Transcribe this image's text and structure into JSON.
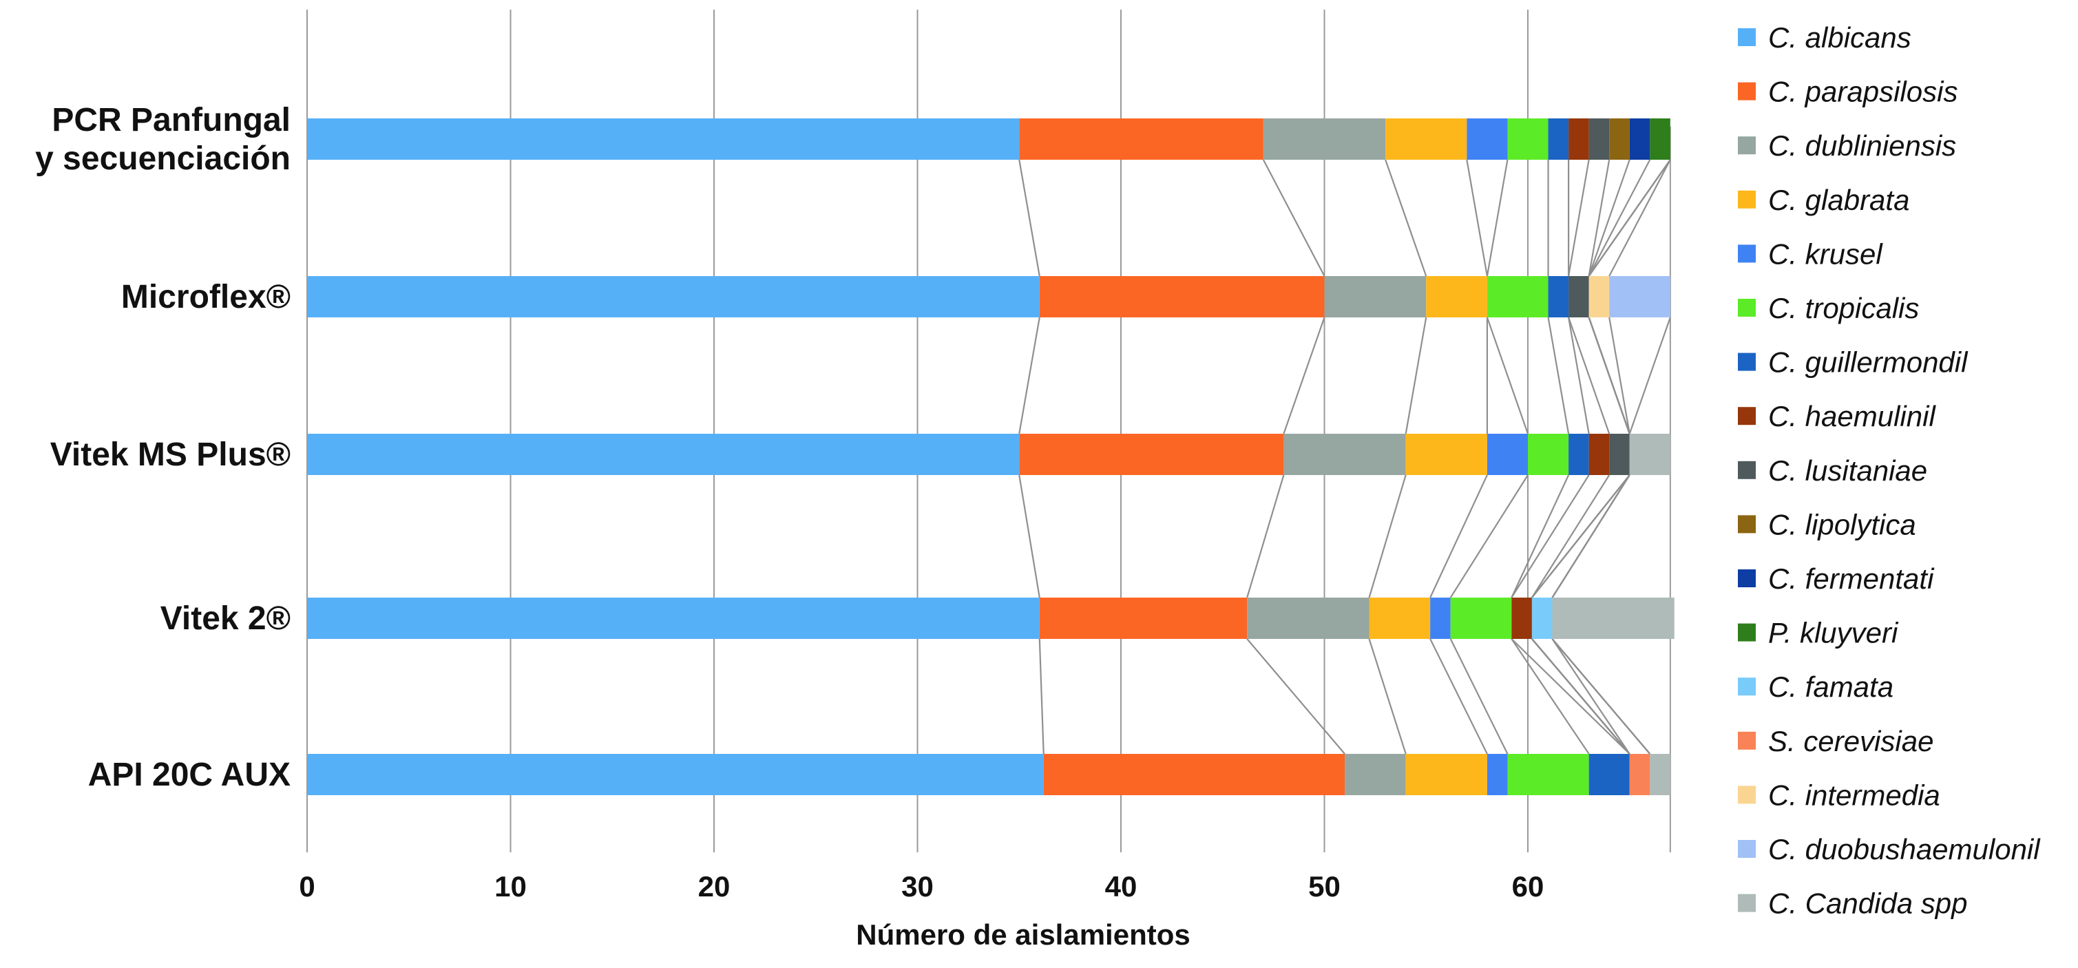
{
  "chart_data": {
    "type": "bar",
    "orientation": "horizontal",
    "stacked": true,
    "xlabel": "Número de aislamientos",
    "xlim": [
      0,
      67
    ],
    "xticks": [
      0,
      10,
      20,
      30,
      40,
      50,
      60
    ],
    "grid": true,
    "legend_position": "right",
    "categories": [
      [
        "PCR Panfungal",
        "y secuenciación"
      ],
      [
        "Microflex®"
      ],
      [
        "Vitek MS Plus®"
      ],
      [
        "Vitek 2®"
      ],
      [
        "API 20C AUX"
      ]
    ],
    "series": [
      {
        "name": "C. albicans",
        "color": "#56B0F8",
        "values": [
          35,
          36,
          35,
          36,
          36.2
        ]
      },
      {
        "name": "C. parapsilosis",
        "color": "#FB6625",
        "values": [
          12,
          14,
          13,
          10.2,
          14.8
        ]
      },
      {
        "name": "C. dubliniensis",
        "color": "#96A6A1",
        "values": [
          6,
          5,
          6,
          6,
          3
        ]
      },
      {
        "name": "C. glabrata",
        "color": "#FDB71A",
        "values": [
          4,
          3,
          4,
          3,
          4
        ]
      },
      {
        "name": "C. krusel",
        "color": "#3F82F3",
        "values": [
          2,
          0,
          2,
          1,
          1
        ]
      },
      {
        "name": "C. tropicalis",
        "color": "#5CEB27",
        "values": [
          2,
          3,
          2,
          3,
          4
        ]
      },
      {
        "name": "C. guillermondil",
        "color": "#1B64C4",
        "values": [
          1,
          1,
          1,
          0,
          2
        ]
      },
      {
        "name": "C. haemulinil",
        "color": "#96360A",
        "values": [
          1,
          0,
          1,
          1,
          0
        ]
      },
      {
        "name": "C. lusitaniae",
        "color": "#4E5A5C",
        "values": [
          1,
          1,
          1,
          0,
          0
        ]
      },
      {
        "name": "C. lipolytica",
        "color": "#8C6512",
        "values": [
          1,
          0,
          0,
          0,
          0
        ]
      },
      {
        "name": "C. fermentati",
        "color": "#0E3DA3",
        "values": [
          1,
          0,
          0,
          0,
          0
        ]
      },
      {
        "name": "P. kluyveri",
        "color": "#2E7E1C",
        "values": [
          1,
          0,
          0,
          0,
          0
        ]
      },
      {
        "name": "C. famata",
        "color": "#79CBFA",
        "values": [
          0,
          0,
          0,
          1,
          0
        ]
      },
      {
        "name": "S. cerevisiae",
        "color": "#F98257",
        "values": [
          0,
          0,
          0,
          0,
          1
        ]
      },
      {
        "name": "C. intermedia",
        "color": "#FAD592",
        "values": [
          0,
          1,
          0,
          0,
          0
        ]
      },
      {
        "name": "C. duobushaemulonil",
        "color": "#A1C0F5",
        "values": [
          0,
          3,
          0,
          0,
          0
        ]
      },
      {
        "name": "C. Candida spp",
        "color": "#AEBBB8",
        "values": [
          0,
          0,
          2,
          6,
          1
        ]
      }
    ]
  }
}
